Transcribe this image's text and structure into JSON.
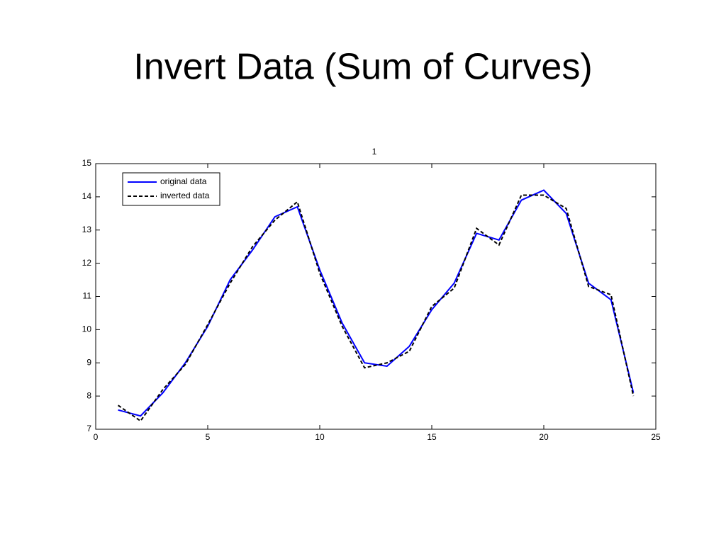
{
  "chart_data": {
    "type": "line",
    "slide_title": "Invert Data (Sum of Curves)",
    "title": "1",
    "x": [
      1,
      2,
      3,
      4,
      5,
      6,
      7,
      8,
      9,
      10,
      11,
      12,
      13,
      14,
      15,
      16,
      17,
      18,
      19,
      20,
      21,
      22,
      23,
      24
    ],
    "series": [
      {
        "name": "original data",
        "color": "#0000ff",
        "dash": "solid",
        "values": [
          7.58,
          7.4,
          8.1,
          9.0,
          10.1,
          11.5,
          12.4,
          13.4,
          13.7,
          11.8,
          10.2,
          9.0,
          8.9,
          9.5,
          10.6,
          11.4,
          12.9,
          12.7,
          13.9,
          14.2,
          13.5,
          11.4,
          10.9,
          8.1
        ]
      },
      {
        "name": "inverted data",
        "color": "#000000",
        "dash": "dashed",
        "values": [
          7.72,
          7.25,
          8.2,
          8.95,
          10.15,
          11.4,
          12.5,
          13.3,
          13.85,
          11.7,
          10.1,
          8.85,
          9.0,
          9.35,
          10.7,
          11.25,
          13.05,
          12.55,
          14.05,
          14.05,
          13.65,
          11.3,
          11.05,
          8.0
        ]
      }
    ],
    "xlim": [
      0,
      25
    ],
    "xticks": [
      0,
      5,
      10,
      15,
      20,
      25
    ],
    "ylim": [
      7,
      15
    ],
    "yticks": [
      7,
      8,
      9,
      10,
      11,
      12,
      13,
      14,
      15
    ],
    "legend": "upper-left"
  }
}
